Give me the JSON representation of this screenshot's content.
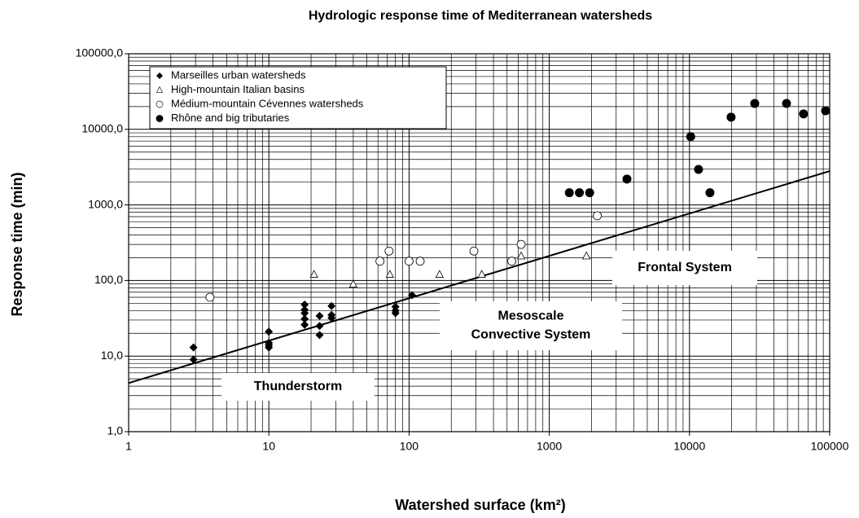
{
  "chart_data": {
    "type": "scatter",
    "title": "Hydrologic response time of Mediterranean watersheds",
    "x_label": "Watershed surface (km²)",
    "y_label": "Response time (min)",
    "x_log": true,
    "y_log": true,
    "grid": true,
    "minor_grid": true,
    "legend": "upper left",
    "xlim": [
      1,
      100000
    ],
    "xticks": [
      1,
      10,
      100,
      1000,
      10000,
      100000
    ],
    "ylim": [
      1,
      100000
    ],
    "yticks": [
      {
        "value": 1,
        "label": "1,0"
      },
      {
        "value": 10,
        "label": "10,0"
      },
      {
        "value": 100,
        "label": "100,0"
      },
      {
        "value": 1000,
        "label": "1000,0"
      },
      {
        "value": 10000,
        "label": "10000,0"
      },
      {
        "value": 100000,
        "label": "100000,0"
      }
    ],
    "series": [
      {
        "name": "Marseilles urban watersheds",
        "marker": "diamond",
        "color": "#000000",
        "x": [
          2.9,
          2.9,
          10,
          10,
          10,
          10,
          18,
          18,
          18,
          18,
          18,
          23,
          23,
          23,
          28,
          28,
          28,
          80,
          80,
          80,
          105
        ],
        "values": [
          13,
          9,
          21,
          15,
          14,
          13,
          48,
          41,
          37,
          31,
          26,
          34,
          25,
          19,
          46,
          35,
          32,
          45,
          40,
          37,
          64
        ]
      },
      {
        "name": "High-mountain Italian basins",
        "marker": "triangle",
        "color": "#000000",
        "x": [
          21,
          40,
          73,
          165,
          330,
          630,
          1840
        ],
        "values": [
          120,
          89,
          120,
          120,
          120,
          210,
          210
        ]
      },
      {
        "name": "Médium-mountain Cévennes watersheds",
        "marker": "circle-open",
        "color": "#000000",
        "x": [
          3.8,
          62,
          72,
          100,
          120,
          290,
          540,
          630,
          2200
        ],
        "values": [
          60,
          180,
          245,
          180,
          180,
          245,
          180,
          300,
          720
        ]
      },
      {
        "name": "Rhône and big tributaries",
        "marker": "circle",
        "color": "#000000",
        "x": [
          1390,
          1640,
          1940,
          3580,
          10200,
          11600,
          14000,
          19800,
          29200,
          49200,
          65100,
          93500
        ],
        "values": [
          1450,
          1450,
          1450,
          2200,
          8000,
          2950,
          1450,
          14500,
          22000,
          22000,
          16000,
          17600
        ]
      }
    ],
    "trend_line": {
      "x": [
        1,
        100000
      ],
      "values": [
        4.4,
        2800
      ],
      "color": "#000000"
    },
    "annotations": [
      {
        "lines": [
          "Thunderstorm"
        ]
      },
      {
        "lines": [
          "Mesoscale",
          "Convective System"
        ]
      },
      {
        "lines": [
          "Frontal System"
        ]
      }
    ]
  }
}
